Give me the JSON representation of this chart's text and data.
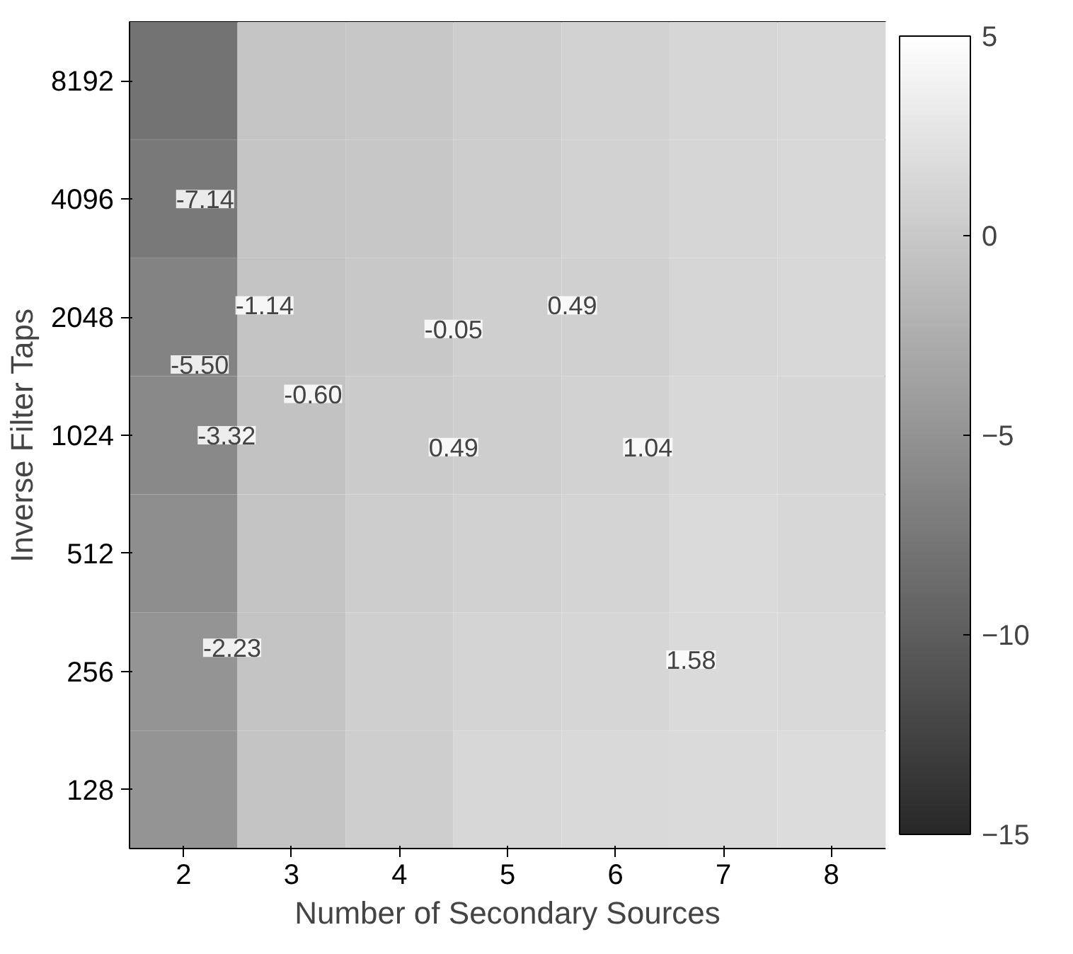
{
  "chart_data": {
    "type": "heatmap",
    "xlabel": "Number of Secondary Sources",
    "ylabel": "Inverse Filter Taps",
    "categories": [
      "2",
      "3",
      "4",
      "5",
      "6",
      "7",
      "8"
    ],
    "y_categories": [
      "8192",
      "4096",
      "2048",
      "1024",
      "512",
      "256",
      "128"
    ],
    "cells": [
      [
        -8.0,
        -0.4,
        -0.2,
        0.3,
        0.8,
        1.2,
        1.4
      ],
      [
        -7.5,
        -0.4,
        -0.2,
        0.3,
        0.8,
        1.2,
        1.4
      ],
      [
        -6.5,
        -0.6,
        -0.1,
        0.5,
        0.6,
        1.2,
        1.4
      ],
      [
        -6.0,
        -0.7,
        0.2,
        0.4,
        0.8,
        1.4,
        1.2
      ],
      [
        -5.5,
        -0.5,
        0.3,
        0.7,
        1.0,
        1.6,
        1.3
      ],
      [
        -5.0,
        -0.5,
        0.5,
        1.0,
        1.2,
        1.6,
        1.5
      ],
      [
        -5.0,
        -0.5,
        0.4,
        1.3,
        1.5,
        1.6,
        1.7
      ]
    ],
    "clim": [
      -15,
      5
    ],
    "cticks": [
      -15,
      -10,
      -5,
      0,
      5
    ],
    "annotations": [
      "-7.14",
      "-5.50",
      "-3.32",
      "-2.23",
      "-1.14",
      "-0.60",
      "-0.05",
      "0.49",
      "0.49",
      "1.04",
      "1.58"
    ]
  }
}
